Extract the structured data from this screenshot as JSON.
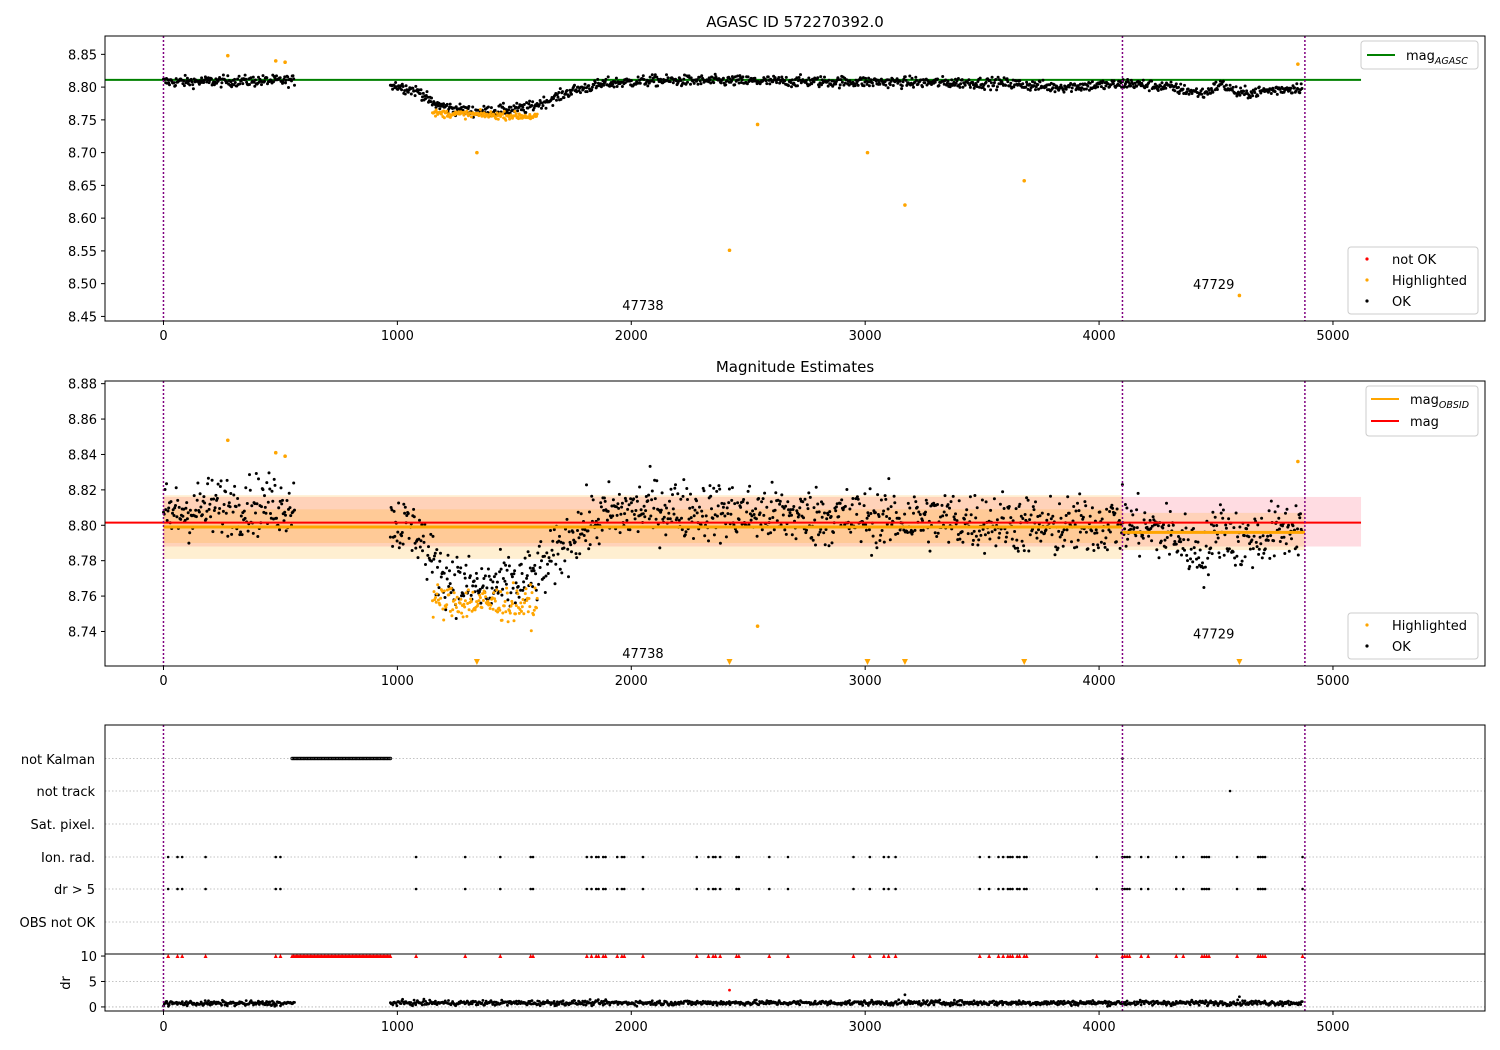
{
  "chart_data": [
    {
      "type": "scatter",
      "title": "AGASC ID 572270392.0",
      "xlim": [
        -250,
        5650
      ],
      "ylim": [
        8.443,
        8.878
      ],
      "xticks": [
        0,
        1000,
        2000,
        3000,
        4000,
        5000
      ],
      "yticks": [
        8.45,
        8.5,
        8.55,
        8.6,
        8.65,
        8.7,
        8.75,
        8.8,
        8.85
      ],
      "grid": false,
      "obsid_boundaries": [
        0,
        4100,
        4880
      ],
      "obsid_labels": [
        {
          "text": "47738",
          "x": 2050,
          "y": 8.46
        },
        {
          "text": "47729",
          "x": 4490,
          "y": 8.492
        }
      ],
      "legends": [
        {
          "location": "upper right",
          "entries": [
            {
              "label": "mag",
              "subscript": "AGASC",
              "color": "#008000",
              "marker": "line"
            }
          ]
        },
        {
          "location": "lower right",
          "entries": [
            {
              "label": "not OK",
              "color": "#ff0000",
              "marker": "dot"
            },
            {
              "label": "Highlighted",
              "color": "#ffa500",
              "marker": "dot"
            },
            {
              "label": "OK",
              "color": "#000000",
              "marker": "dot"
            }
          ]
        }
      ],
      "series": [
        {
          "name": "mag",
          "subscript": "AGASC",
          "kind": "hline",
          "y": 8.811,
          "x_range": [
            -250,
            5120
          ],
          "color": "#008000"
        },
        {
          "name": "OK",
          "kind": "points",
          "color": "#000000",
          "segments": [
            {
              "x": [
                0,
                560
              ],
              "levels": [
                [
                  0,
                  8.808
                ],
                [
                  560,
                  8.81
                ]
              ],
              "noise": 0.006
            },
            {
              "x": [
                970,
                4870
              ],
              "levels": [
                [
                  970,
                  8.805
                ],
                [
                  1100,
                  8.792
                ],
                [
                  1150,
                  8.775
                ],
                [
                  1250,
                  8.766
                ],
                [
                  1350,
                  8.762
                ],
                [
                  1550,
                  8.768
                ],
                [
                  1650,
                  8.78
                ],
                [
                  1750,
                  8.795
                ],
                [
                  1900,
                  8.806
                ],
                [
                  2100,
                  8.81
                ],
                [
                  2600,
                  8.809
                ],
                [
                  3000,
                  8.808
                ],
                [
                  3600,
                  8.806
                ],
                [
                  3800,
                  8.8
                ],
                [
                  4090,
                  8.804
                ],
                [
                  4110,
                  8.806
                ],
                [
                  4300,
                  8.8
                ],
                [
                  4450,
                  8.79
                ],
                [
                  4520,
                  8.805
                ],
                [
                  4600,
                  8.79
                ],
                [
                  4870,
                  8.8
                ]
              ],
              "noise": 0.006
            }
          ]
        },
        {
          "name": "Highlighted",
          "kind": "points",
          "color": "#ffa500",
          "segments": [
            {
              "x": [
                1150,
                1600
              ],
              "levels": [
                [
                  1150,
                  8.76
                ],
                [
                  1600,
                  8.755
                ]
              ],
              "noise": 0.004
            }
          ],
          "points": [
            [
              275,
              8.848
            ],
            [
              480,
              8.84
            ],
            [
              520,
              8.838
            ],
            [
              1340,
              8.7
            ],
            [
              2420,
              8.551
            ],
            [
              2540,
              8.743
            ],
            [
              3010,
              8.7
            ],
            [
              3170,
              8.62
            ],
            [
              3680,
              8.657
            ],
            [
              4600,
              8.482
            ],
            [
              4850,
              8.835
            ]
          ]
        }
      ]
    },
    {
      "type": "scatter",
      "title": "Magnitude Estimates",
      "xlim": [
        -250,
        5650
      ],
      "ylim": [
        8.7205,
        8.8815
      ],
      "xticks": [
        0,
        1000,
        2000,
        3000,
        4000,
        5000
      ],
      "yticks": [
        8.74,
        8.76,
        8.78,
        8.8,
        8.82,
        8.84,
        8.86,
        8.88
      ],
      "grid": false,
      "obsid_boundaries": [
        0,
        4100,
        4880
      ],
      "obsid_labels": [
        {
          "text": "47738",
          "x": 2050,
          "y": 8.725
        },
        {
          "text": "47729",
          "x": 4490,
          "y": 8.736
        }
      ],
      "legends": [
        {
          "location": "upper right",
          "entries": [
            {
              "label": "mag",
              "subscript": "OBSID",
              "color": "#ffa500",
              "marker": "line"
            },
            {
              "label": "mag",
              "color": "#ff0000",
              "marker": "line"
            }
          ]
        },
        {
          "location": "lower right",
          "entries": [
            {
              "label": "Highlighted",
              "color": "#ffa500",
              "marker": "dot"
            },
            {
              "label": "OK",
              "color": "#000000",
              "marker": "dot"
            }
          ]
        }
      ],
      "bands": [
        {
          "x_range": [
            0,
            5120
          ],
          "y_range": [
            8.788,
            8.816
          ],
          "color": "#ffc0cb",
          "opacity": 0.55
        },
        {
          "x_range": [
            0,
            4100
          ],
          "y_range": [
            8.781,
            8.817
          ],
          "color": "#ffa500",
          "opacity": 0.18
        },
        {
          "x_range": [
            0,
            4100
          ],
          "y_range": [
            8.79,
            8.809
          ],
          "color": "#ffa500",
          "opacity": 0.18
        },
        {
          "x_range": [
            4100,
            4880
          ],
          "y_range": [
            8.786,
            8.807
          ],
          "color": "#ffa500",
          "opacity": 0.18
        }
      ],
      "series": [
        {
          "name": "mag",
          "subscript": "OBSID",
          "kind": "segments",
          "color": "#ffa500",
          "segments": [
            [
              0,
              4100,
              8.799
            ],
            [
              4100,
              4880,
              8.796
            ]
          ]
        },
        {
          "name": "mag",
          "kind": "hline",
          "y": 8.8015,
          "x_range": [
            -250,
            5120
          ],
          "color": "#ff0000"
        },
        {
          "name": "OK",
          "kind": "points",
          "color": "#000000",
          "segments": [
            {
              "x": [
                0,
                560
              ],
              "levels": [
                [
                  0,
                  8.806
                ],
                [
                  280,
                  8.812
                ],
                [
                  560,
                  8.812
                ]
              ],
              "noise": 0.012
            },
            {
              "x": [
                970,
                4870
              ],
              "levels": [
                [
                  970,
                  8.803
                ],
                [
                  1100,
                  8.795
                ],
                [
                  1150,
                  8.778
                ],
                [
                  1250,
                  8.768
                ],
                [
                  1350,
                  8.764
                ],
                [
                  1550,
                  8.768
                ],
                [
                  1650,
                  8.778
                ],
                [
                  1750,
                  8.795
                ],
                [
                  1900,
                  8.806
                ],
                [
                  2100,
                  8.81
                ],
                [
                  2600,
                  8.806
                ],
                [
                  3000,
                  8.804
                ],
                [
                  3600,
                  8.802
                ],
                [
                  3800,
                  8.798
                ],
                [
                  4090,
                  8.802
                ],
                [
                  4110,
                  8.8
                ],
                [
                  4300,
                  8.795
                ],
                [
                  4450,
                  8.783
                ],
                [
                  4520,
                  8.8
                ],
                [
                  4600,
                  8.79
                ],
                [
                  4870,
                  8.8
                ]
              ],
              "noise": 0.012
            }
          ]
        },
        {
          "name": "Highlighted",
          "kind": "points",
          "color": "#ffa500",
          "segments": [
            {
              "x": [
                1150,
                1600
              ],
              "levels": [
                [
                  1150,
                  8.757
                ],
                [
                  1600,
                  8.755
                ]
              ],
              "noise": 0.007
            }
          ],
          "points": [
            [
              275,
              8.848
            ],
            [
              480,
              8.841
            ],
            [
              520,
              8.839
            ],
            [
              2540,
              8.743
            ],
            [
              4850,
              8.836
            ]
          ]
        },
        {
          "name": "Highlighted",
          "kind": "offscale",
          "color": "#ffa500",
          "x": [
            1340,
            2420,
            3010,
            3170,
            3680,
            4600
          ]
        }
      ]
    },
    {
      "type": "scatter",
      "title": "",
      "xlim": [
        -250,
        5650
      ],
      "xticks": [
        0,
        1000,
        2000,
        3000,
        4000,
        5000
      ],
      "obsid_boundaries": [
        0,
        4100,
        4880
      ],
      "flag_rows": [
        "not Kalman",
        "not track",
        "Sat. pixel.",
        "Ion. rad.",
        "dr > 5",
        "OBS not OK"
      ],
      "flags": {
        "not Kalman": {
          "ranges": [
            [
              550,
              975
            ]
          ],
          "points": [
            4100
          ]
        },
        "not track": {
          "points": [
            4560
          ]
        },
        "Sat. pixel.": {
          "points": []
        },
        "Ion. rad.": {
          "points": [
            20,
            60,
            80,
            180,
            480,
            500,
            1080,
            1290,
            1440,
            1570,
            1580,
            1810,
            1830,
            1850,
            1860,
            1880,
            1890,
            1940,
            1960,
            1970,
            2050,
            2280,
            2330,
            2350,
            2360,
            2380,
            2450,
            2460,
            2590,
            2670,
            2950,
            3020,
            3080,
            3100,
            3130,
            3490,
            3530,
            3570,
            3590,
            3610,
            3620,
            3630,
            3650,
            3660,
            3680,
            3690,
            3990,
            4100,
            4110,
            4120,
            4130,
            4180,
            4210,
            4330,
            4360,
            4440,
            4450,
            4460,
            4470,
            4590,
            4680,
            4690,
            4700,
            4710,
            4870
          ]
        },
        "dr > 5": {
          "points": [
            20,
            60,
            80,
            180,
            480,
            500,
            1080,
            1290,
            1440,
            1570,
            1580,
            1810,
            1830,
            1850,
            1860,
            1880,
            1890,
            1940,
            1960,
            1970,
            2050,
            2280,
            2330,
            2350,
            2360,
            2380,
            2450,
            2460,
            2590,
            2670,
            2950,
            3020,
            3080,
            3100,
            3130,
            3490,
            3530,
            3570,
            3590,
            3610,
            3620,
            3630,
            3650,
            3660,
            3680,
            3690,
            3990,
            4100,
            4110,
            4120,
            4130,
            4180,
            4210,
            4330,
            4360,
            4440,
            4450,
            4460,
            4470,
            4590,
            4680,
            4690,
            4700,
            4710,
            4870
          ]
        },
        "OBS not OK": {
          "points": []
        }
      },
      "dr_panel": {
        "ylabel": "dr",
        "ylim": [
          -0.8,
          10.4
        ],
        "yticks": [
          0,
          5,
          10
        ],
        "capped_value": 10,
        "capped_color": "#ff0000",
        "segments": [
          {
            "x": [
              0,
              560
            ],
            "mean": 0.7
          },
          {
            "x": [
              970,
              4870
            ],
            "mean": 0.8
          }
        ],
        "extra_points": [
          [
            2420,
            3.3,
            "#ff0000"
          ],
          [
            3170,
            2.4,
            "#000000"
          ],
          [
            4600,
            2.0,
            "#000000"
          ]
        ]
      }
    }
  ]
}
